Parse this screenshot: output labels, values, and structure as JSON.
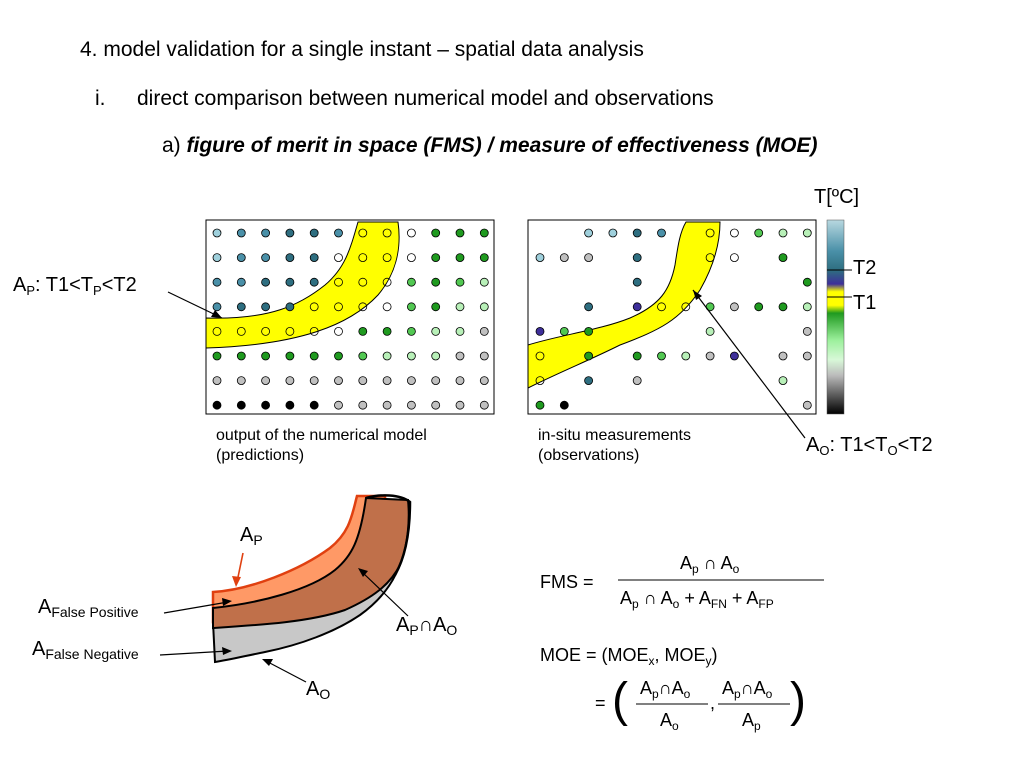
{
  "heading": {
    "level1": "4. model validation for a single instant – spatial data analysis",
    "level2_marker": "i.",
    "level2": "direct comparison between numerical model and observations",
    "level3_prefix": "a)",
    "level3": "figure of merit in space (FMS) / measure of effectiveness (MOE)"
  },
  "colorbar": {
    "title": "T[ºC]",
    "t2_label": "T2",
    "t1_label": "T1",
    "stops": [
      "#b8d8e0",
      "#2e6e80",
      "#3e2f9a",
      "#ffff00",
      "#1f9a1f",
      "#9cf09c",
      "#bcbcbc",
      "#000000"
    ]
  },
  "panels": {
    "model_caption_line1": "output of the numerical model",
    "model_caption_line2": "(predictions)",
    "obs_caption_line1": "in-situ measurements",
    "obs_caption_line2": "(observations)"
  },
  "labels": {
    "ap_top": {
      "main": "A",
      "sub": "P",
      "rest": ": T1<T",
      "sub2": "P",
      "rest2": "<T2"
    },
    "ao_top": {
      "main": "A",
      "sub": "O",
      "rest": ": T1<T",
      "sub2": "O",
      "rest2": "<T2"
    },
    "ap": {
      "main": "A",
      "sub": "P"
    },
    "afp": {
      "main": "A",
      "sub": "False Positive"
    },
    "afn": {
      "main": "A",
      "sub": "False Negative"
    },
    "apao": {
      "main": "A",
      "sub": "P",
      "mid": "∩A",
      "sub2": "O"
    },
    "ao": {
      "main": "A",
      "sub": "O"
    }
  },
  "formulas": {
    "fms_lhs": "FMS =",
    "fms_num": "A",
    "fms_text": "FMS = (Ap ∩ Ao) / (Ap ∩ Ao + AFN + AFP)",
    "moe_text": "MOE = (MOEx, MOEy) = ((Ap ∩ Ao)/Ao , (Ap ∩ Ao)/Ap)"
  },
  "colors": {
    "yellow_band": "#ffff00",
    "predicted_area": "#ff9966",
    "overlap_area": "#c0704a",
    "observed_area": "#c8c8c8",
    "orange_arrow": "#e04010"
  }
}
